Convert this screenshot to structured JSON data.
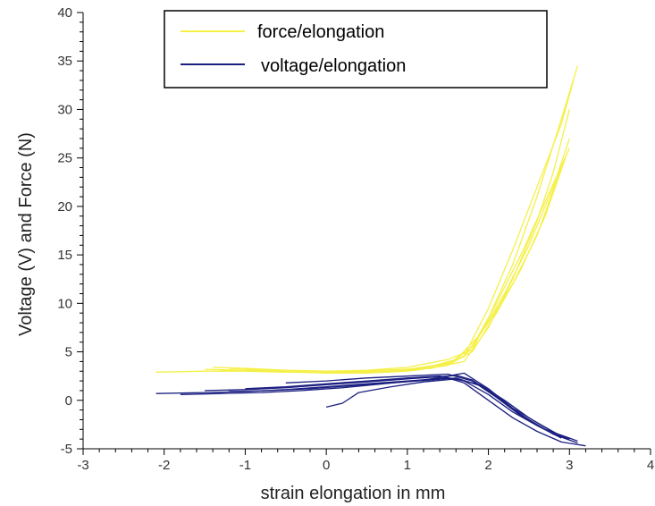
{
  "chart_data": {
    "type": "line",
    "title": "",
    "xlabel": "strain elongation in mm",
    "ylabel": "Voltage (V) and Force (N)",
    "xlim": [
      -3,
      4
    ],
    "ylim": [
      -5,
      40
    ],
    "x_ticks": [
      "-3",
      "-2",
      "-1",
      "0",
      "1",
      "2",
      "3",
      "4"
    ],
    "y_ticks": [
      "-5",
      "0",
      "5",
      "10",
      "15",
      "20",
      "25",
      "30",
      "35",
      "40"
    ],
    "grid": false,
    "legend_position": "top",
    "series": [
      {
        "name": "force/elongation",
        "color": "#f5f048",
        "cycles": [
          {
            "x": [
              -2.1,
              -1.5,
              -1.0,
              -0.5,
              0.0,
              0.5,
              1.0,
              1.5,
              1.8,
              2.0,
              2.3,
              2.6,
              2.9,
              3.1
            ],
            "y": [
              2.9,
              3.0,
              3.0,
              2.9,
              3.0,
              3.1,
              3.4,
              4.2,
              5.2,
              8.5,
              14.0,
              21.0,
              29.0,
              34.5
            ]
          },
          {
            "x": [
              -1.5,
              -1.0,
              -0.5,
              0.0,
              0.5,
              1.0,
              1.5,
              1.7,
              2.0,
              2.3,
              2.6,
              2.9,
              3.05
            ],
            "y": [
              3.2,
              3.1,
              3.0,
              2.8,
              2.8,
              3.0,
              3.6,
              4.6,
              9.5,
              15.5,
              22.0,
              28.5,
              33.0
            ]
          },
          {
            "x": [
              -1.4,
              -1.0,
              -0.5,
              0.0,
              0.5,
              1.0,
              1.4,
              1.7,
              2.0,
              2.3,
              2.6,
              2.8,
              3.0
            ],
            "y": [
              3.4,
              3.3,
              3.1,
              3.0,
              3.0,
              3.2,
              3.5,
              4.0,
              7.5,
              12.5,
              18.5,
              23.5,
              30.0
            ]
          },
          {
            "x": [
              -1.2,
              -0.8,
              -0.3,
              0.2,
              0.7,
              1.2,
              1.6,
              1.9,
              2.2,
              2.5,
              2.8,
              3.0
            ],
            "y": [
              3.3,
              3.2,
              3.0,
              2.9,
              3.1,
              3.3,
              4.2,
              6.8,
              11.0,
              16.0,
              22.0,
              27.0
            ]
          },
          {
            "x": [
              -1.3,
              -0.8,
              -0.3,
              0.3,
              0.8,
              1.3,
              1.7,
              2.0,
              2.3,
              2.6,
              2.9
            ],
            "y": [
              3.1,
              3.0,
              2.9,
              2.8,
              3.0,
              3.3,
              4.5,
              8.0,
              12.0,
              17.0,
              24.0
            ]
          },
          {
            "x": [
              -1.0,
              -0.5,
              0.0,
              0.5,
              1.0,
              1.5,
              1.8,
              2.1,
              2.4,
              2.7,
              2.95
            ],
            "y": [
              3.2,
              3.0,
              2.9,
              3.0,
              3.2,
              3.8,
              5.0,
              9.0,
              13.5,
              19.0,
              25.0
            ]
          },
          {
            "x": [
              -0.9,
              -0.4,
              0.1,
              0.6,
              1.1,
              1.5,
              1.8,
              2.1,
              2.4,
              2.7,
              3.0
            ],
            "y": [
              3.0,
              2.9,
              2.8,
              2.9,
              3.1,
              3.7,
              5.5,
              10.0,
              15.0,
              20.5,
              26.0
            ]
          }
        ]
      },
      {
        "name": "voltage/elongation",
        "color": "#1b1f80",
        "cycles": [
          {
            "x": [
              -2.1,
              -1.5,
              -1.0,
              -0.5,
              0.0,
              0.5,
              1.0,
              1.5,
              1.7,
              2.0,
              2.3,
              2.6,
              2.9,
              3.2
            ],
            "y": [
              0.7,
              0.8,
              0.9,
              1.1,
              1.4,
              1.7,
              2.0,
              2.3,
              1.8,
              0.0,
              -1.8,
              -3.2,
              -4.3,
              -4.7
            ]
          },
          {
            "x": [
              -1.8,
              -1.3,
              -0.8,
              -0.3,
              0.2,
              0.7,
              1.2,
              1.6,
              1.8,
              2.1,
              2.4,
              2.7,
              3.0
            ],
            "y": [
              0.6,
              0.7,
              0.8,
              1.0,
              1.3,
              1.7,
              2.1,
              2.6,
              2.1,
              0.4,
              -1.5,
              -3.0,
              -4.1
            ]
          },
          {
            "x": [
              -1.5,
              -1.0,
              -0.5,
              0.0,
              0.5,
              1.0,
              1.5,
              1.7,
              2.0,
              2.3,
              2.6,
              2.9
            ],
            "y": [
              1.0,
              1.1,
              1.3,
              1.6,
              1.9,
              2.2,
              2.5,
              2.8,
              1.2,
              -0.8,
              -2.3,
              -3.7
            ]
          },
          {
            "x": [
              -1.2,
              -0.7,
              -0.2,
              0.3,
              0.8,
              1.3,
              1.6,
              1.9,
              2.2,
              2.5,
              2.8,
              3.1
            ],
            "y": [
              0.9,
              1.0,
              1.2,
              1.5,
              1.8,
              2.1,
              2.3,
              1.5,
              -0.3,
              -2.0,
              -3.5,
              -4.4
            ]
          },
          {
            "x": [
              -1.0,
              -0.5,
              0.0,
              0.5,
              1.0,
              1.4,
              1.7,
              2.0,
              2.3,
              2.6,
              2.9
            ],
            "y": [
              1.2,
              1.4,
              1.7,
              2.0,
              2.3,
              2.5,
              2.0,
              0.6,
              -1.2,
              -2.6,
              -3.9
            ]
          },
          {
            "x": [
              0.0,
              0.2,
              0.4,
              0.8,
              1.2,
              1.6,
              1.9,
              2.2,
              2.5,
              2.8,
              3.1
            ],
            "y": [
              -0.7,
              -0.3,
              0.8,
              1.4,
              1.9,
              2.2,
              1.6,
              0.0,
              -1.8,
              -3.3,
              -4.2
            ]
          },
          {
            "x": [
              -0.5,
              0.0,
              0.5,
              1.0,
              1.5,
              1.8,
              2.1,
              2.4,
              2.7,
              3.0
            ],
            "y": [
              1.8,
              2.0,
              2.3,
              2.5,
              2.7,
              2.0,
              0.3,
              -1.6,
              -3.0,
              -4.0
            ]
          }
        ]
      }
    ]
  }
}
